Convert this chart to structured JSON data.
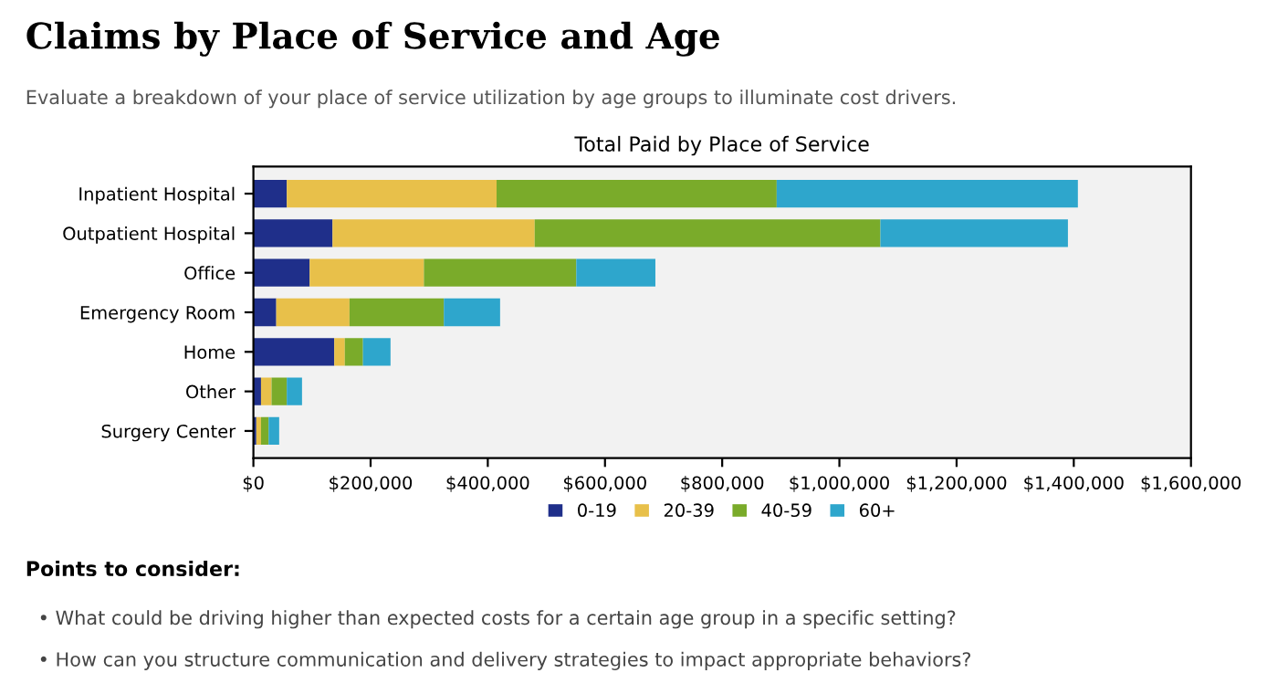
{
  "chart_data": {
    "type": "bar",
    "orientation": "horizontal",
    "stacked": true,
    "title": "Total Paid by Place of Service",
    "annotations": [
      "Claims by Place of Service and Age",
      "Evaluate a breakdown of your place of service utilization by age groups to illuminate cost drivers.",
      "Points to consider:",
      "• What could be driving higher than expected costs for a certain age group in a specific setting?",
      "• How can you structure communication and delivery strategies to impact appropriate behaviors?"
    ],
    "categories": [
      "Inpatient Hospital",
      "Outpatient Hospital",
      "Office",
      "Emergency Room",
      "Home",
      "Other",
      "Surgery Center"
    ],
    "series": [
      {
        "name": "0-19",
        "color": "#1f2f8a",
        "values": [
          57000,
          135000,
          96000,
          39000,
          138000,
          13000,
          5000
        ]
      },
      {
        "name": "20-39",
        "color": "#e8c04a",
        "values": [
          358000,
          345000,
          195000,
          125000,
          18000,
          18000,
          8000
        ]
      },
      {
        "name": "40-59",
        "color": "#7aab2a",
        "values": [
          478000,
          590000,
          260000,
          161000,
          31000,
          26000,
          13000
        ]
      },
      {
        "name": "60+",
        "color": "#2ea6cc",
        "values": [
          514000,
          320000,
          135000,
          96000,
          47000,
          26000,
          18000
        ]
      }
    ],
    "xlim": [
      0,
      1600000
    ],
    "xticks": [
      {
        "value": 0,
        "label": "$0"
      },
      {
        "value": 200000,
        "label": "$200,000"
      },
      {
        "value": 400000,
        "label": "$400,000"
      },
      {
        "value": 600000,
        "label": "$600,000"
      },
      {
        "value": 800000,
        "label": "$800,000"
      },
      {
        "value": 1000000,
        "label": "$1,000,000"
      },
      {
        "value": 1200000,
        "label": "$1,200,000"
      },
      {
        "value": 1400000,
        "label": "$1,400,000"
      },
      {
        "value": 1600000,
        "label": "$1,600,000"
      }
    ],
    "legend": "bottom",
    "grid": false
  }
}
